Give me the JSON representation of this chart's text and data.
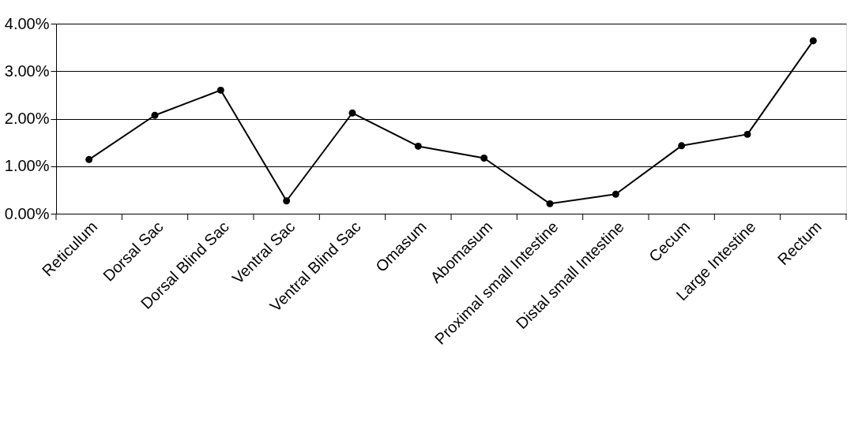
{
  "chart_data": {
    "type": "line",
    "categories": [
      "Reticulum",
      "Dorsal Sac",
      "Dorsal Blind Sac",
      "Ventral Sac",
      "Ventral Blind Sac",
      "Omasum",
      "Abomasum",
      "Proximal small Intestine",
      "Distal small Intestine",
      "Cecum",
      "Large Intestine",
      "Rectum"
    ],
    "series": [
      {
        "color": "#000000",
        "values": [
          1.14,
          2.07,
          2.6,
          0.27,
          2.12,
          1.42,
          1.17,
          0.21,
          0.41,
          1.43,
          1.67,
          3.64
        ]
      }
    ],
    "ylim": [
      0,
      4
    ],
    "yticks": [
      {
        "value": 0,
        "label": "0.00%"
      },
      {
        "value": 1,
        "label": "1.00%"
      },
      {
        "value": 2,
        "label": "2.00%"
      },
      {
        "value": 3,
        "label": "3.00%"
      },
      {
        "value": 4,
        "label": "4.00%"
      }
    ],
    "grid": "y",
    "marker": "circle",
    "line_style": "solid"
  }
}
